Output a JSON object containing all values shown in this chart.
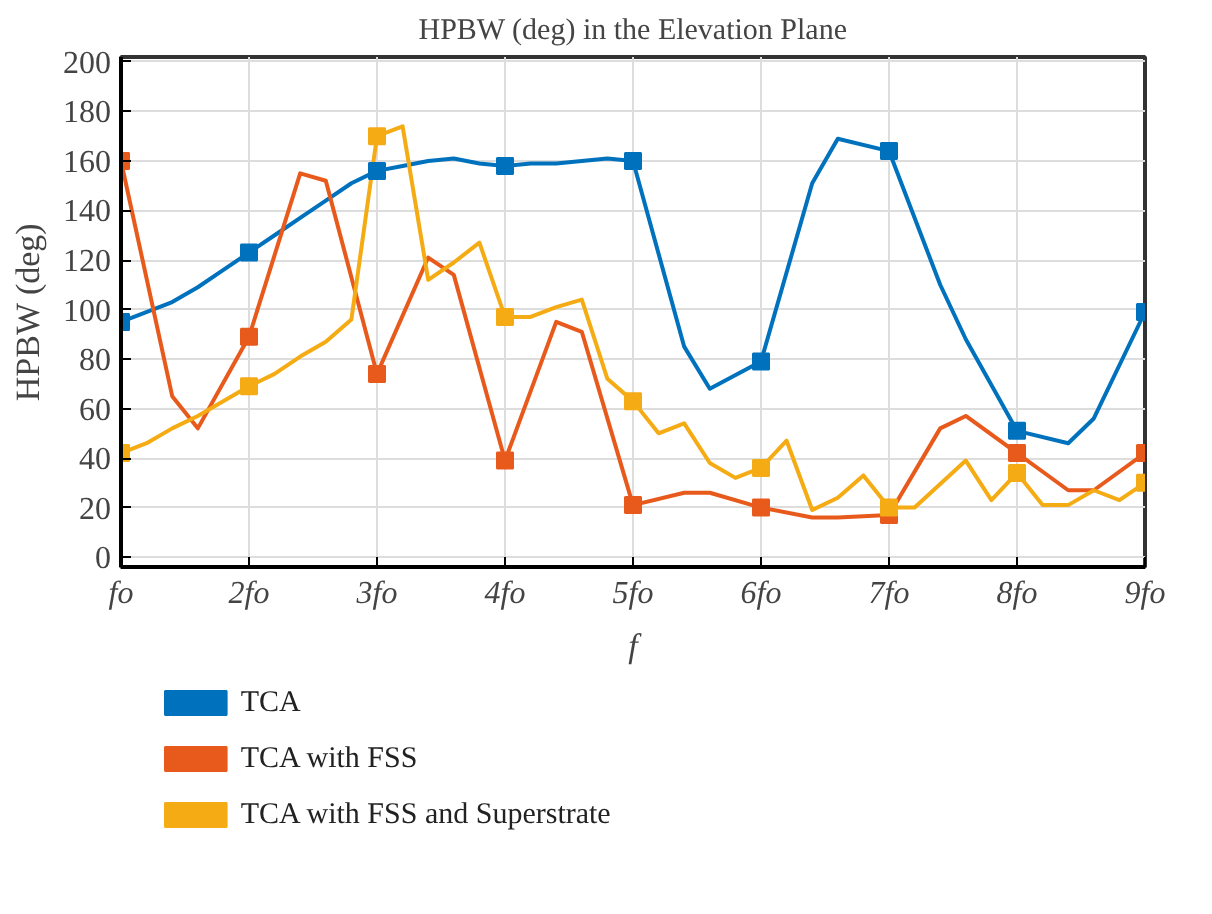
{
  "chart_data": {
    "type": "line",
    "title": "HPBW (deg) in the Elevation Plane",
    "xlabel": "f",
    "ylabel": "HPBW (deg)",
    "xlim": [
      1,
      9
    ],
    "xticks": [
      {
        "value": 1,
        "label": "fo"
      },
      {
        "value": 2,
        "label": "2fo"
      },
      {
        "value": 3,
        "label": "3fo"
      },
      {
        "value": 4,
        "label": "4fo"
      },
      {
        "value": 5,
        "label": "5fo"
      },
      {
        "value": 6,
        "label": "6fo"
      },
      {
        "value": 7,
        "label": "7fo"
      },
      {
        "value": 8,
        "label": "8fo"
      },
      {
        "value": 9,
        "label": "9fo"
      }
    ],
    "ylim": [
      -4,
      202
    ],
    "yticks": [
      0,
      20,
      40,
      60,
      80,
      100,
      120,
      140,
      160,
      180,
      200
    ],
    "grid": true,
    "legend": "bottom",
    "line_style": "solid",
    "series": [
      {
        "name": "TCA",
        "color": "#0072bd",
        "marker": "none",
        "x": [
          1,
          1.4,
          1.6,
          1.8,
          2,
          2.2,
          2.4,
          2.6,
          2.8,
          3,
          3.2,
          3.4,
          3.6,
          3.8,
          4,
          4.2,
          4.4,
          4.6,
          4.8,
          5,
          5.4,
          5.6,
          6,
          6.4,
          6.6,
          7,
          7.4,
          7.6,
          8,
          8.4,
          8.6,
          9
        ],
        "values": [
          95,
          103,
          109,
          116,
          123,
          130,
          137,
          144,
          151,
          156,
          158,
          160,
          161,
          159,
          158,
          159,
          159,
          160,
          161,
          160,
          85,
          68,
          79,
          151,
          169,
          164,
          110,
          88,
          51,
          46,
          56,
          99
        ]
      },
      {
        "name": "TCA with FSS",
        "color": "#e85a1c",
        "marker": "none",
        "x": [
          1,
          1.4,
          1.6,
          2,
          2.4,
          2.6,
          3,
          3.4,
          3.6,
          4,
          4.4,
          4.6,
          5,
          5.4,
          5.6,
          6,
          6.4,
          6.6,
          7,
          7.4,
          7.6,
          8,
          8.4,
          8.6,
          9
        ],
        "values": [
          160,
          65,
          52,
          89,
          155,
          152,
          74,
          121,
          114,
          39,
          95,
          91,
          21,
          26,
          26,
          20,
          16,
          16,
          17,
          52,
          57,
          42,
          27,
          27,
          42
        ]
      },
      {
        "name": "TCA with FSS and Superstrate",
        "color": "#f5ac14",
        "marker": "none",
        "x": [
          1,
          1.2,
          1.4,
          1.6,
          2,
          2.2,
          2.4,
          2.6,
          2.8,
          3,
          3.2,
          3.4,
          3.6,
          3.8,
          4,
          4.2,
          4.4,
          4.6,
          4.8,
          5,
          5.2,
          5.4,
          5.6,
          5.8,
          6,
          6.2,
          6.4,
          6.6,
          6.8,
          7,
          7.2,
          7.6,
          7.8,
          8,
          8.2,
          8.4,
          8.6,
          8.8,
          9
        ],
        "values": [
          42,
          46,
          52,
          57,
          69,
          74,
          81,
          87,
          96,
          170,
          174,
          112,
          119,
          127,
          97,
          97,
          101,
          104,
          72,
          63,
          50,
          54,
          38,
          32,
          36,
          47,
          19,
          24,
          33,
          20,
          20,
          39,
          23,
          34,
          21,
          21,
          27,
          23,
          30
        ]
      },
      {
        "type": "scatter",
        "color": "#0072bd",
        "marker": "square",
        "x": [
          1,
          2,
          3,
          4,
          5,
          6,
          7,
          8,
          9
        ],
        "values": [
          95,
          123,
          156,
          158,
          160,
          79,
          164,
          51,
          99
        ]
      },
      {
        "type": "scatter",
        "color": "#e85a1c",
        "marker": "square",
        "x": [
          1,
          2,
          3,
          4,
          5,
          6,
          7,
          8,
          9
        ],
        "values": [
          160,
          89,
          74,
          39,
          21,
          20,
          17,
          42,
          42
        ]
      },
      {
        "type": "scatter",
        "color": "#f5ac14",
        "marker": "square",
        "x": [
          1,
          2,
          3,
          4,
          5,
          6,
          7,
          8,
          9
        ],
        "values": [
          42,
          69,
          170,
          97,
          63,
          36,
          20,
          34,
          30
        ]
      }
    ]
  }
}
